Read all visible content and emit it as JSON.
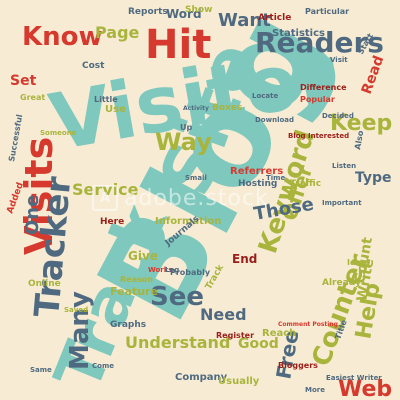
{
  "palette": {
    "background": "#f7ecd3",
    "teal": "#7fc8bd",
    "red": "#d6392e",
    "olive": "#a9b43c",
    "darkred": "#9a1f1a",
    "slate": "#4f6a80",
    "gray": "#8a8a7c"
  },
  "watermark": {
    "logo": "A",
    "text": "adobe.stock"
  },
  "cloud": {
    "main_words": [
      {
        "text": "Visitor",
        "color": "teal"
      },
      {
        "text": "Blog",
        "color": "teal"
      },
      {
        "text": "Site",
        "color": "teal"
      },
      {
        "text": "Track",
        "color": "teal"
      },
      {
        "text": "Visits",
        "color": "red"
      },
      {
        "text": "Hit",
        "color": "red"
      },
      {
        "text": "Know",
        "color": "red"
      },
      {
        "text": "Readers",
        "color": "slate"
      },
      {
        "text": "Keyword",
        "color": "olive"
      },
      {
        "text": "Tracker",
        "color": "slate"
      },
      {
        "text": "Counter",
        "color": "olive"
      },
      {
        "text": "Offer",
        "color": "olive"
      },
      {
        "text": "Keep",
        "color": "olive"
      },
      {
        "text": "Way",
        "color": "olive"
      },
      {
        "text": "See",
        "color": "slate"
      },
      {
        "text": "Free",
        "color": "slate"
      },
      {
        "text": "Many",
        "color": "slate"
      },
      {
        "text": "Web",
        "color": "red"
      },
      {
        "text": "Help",
        "color": "olive"
      },
      {
        "text": "Want",
        "color": "slate"
      },
      {
        "text": "Page",
        "color": "olive"
      },
      {
        "text": "Service",
        "color": "olive"
      },
      {
        "text": "Those",
        "color": "slate"
      },
      {
        "text": "One",
        "color": "slate"
      },
      {
        "text": "Need",
        "color": "slate"
      },
      {
        "text": "Understand",
        "color": "olive"
      },
      {
        "text": "Set",
        "color": "red"
      },
      {
        "text": "Good",
        "color": "olive"
      },
      {
        "text": "Write",
        "color": "olive"
      },
      {
        "text": "Type",
        "color": "slate"
      },
      {
        "text": "Read",
        "color": "red"
      },
      {
        "text": "Count",
        "color": "olive"
      },
      {
        "text": "Statistics",
        "color": "slate"
      },
      {
        "text": "Information",
        "color": "olive"
      },
      {
        "text": "Traffic",
        "color": "olive"
      },
      {
        "text": "Hosting",
        "color": "slate"
      },
      {
        "text": "End",
        "color": "darkred"
      },
      {
        "text": "Give",
        "color": "olive"
      },
      {
        "text": "Word",
        "color": "slate"
      },
      {
        "text": "Article",
        "color": "darkred"
      },
      {
        "text": "Feature",
        "color": "olive"
      },
      {
        "text": "Company",
        "color": "slate"
      },
      {
        "text": "Usually",
        "color": "olive"
      },
      {
        "text": "Reports",
        "color": "slate"
      },
      {
        "text": "Show",
        "color": "olive"
      },
      {
        "text": "Graphs",
        "color": "slate"
      },
      {
        "text": "Journals",
        "color": "slate"
      },
      {
        "text": "Referrers",
        "color": "red"
      },
      {
        "text": "Boxes",
        "color": "olive"
      },
      {
        "text": "Difference",
        "color": "darkred"
      },
      {
        "text": "Popular",
        "color": "red"
      },
      {
        "text": "Bloggers",
        "color": "darkred"
      },
      {
        "text": "Online",
        "color": "olive"
      },
      {
        "text": "Reach",
        "color": "olive"
      },
      {
        "text": "Comment Posting",
        "color": "red"
      },
      {
        "text": "Already",
        "color": "olive"
      },
      {
        "text": "Blog Interested",
        "color": "darkred"
      },
      {
        "text": "Download",
        "color": "slate"
      },
      {
        "text": "Activity",
        "color": "slate"
      },
      {
        "text": "Easiest Writer",
        "color": "slate"
      },
      {
        "text": "Register",
        "color": "darkred"
      },
      {
        "text": "Ideal",
        "color": "olive"
      },
      {
        "text": "Successful",
        "color": "slate"
      },
      {
        "text": "Someone",
        "color": "olive"
      },
      {
        "text": "Added",
        "color": "red"
      },
      {
        "text": "Listen",
        "color": "slate"
      },
      {
        "text": "Great",
        "color": "olive"
      },
      {
        "text": "Cost",
        "color": "slate"
      },
      {
        "text": "Little",
        "color": "slate"
      },
      {
        "text": "Same",
        "color": "slate"
      },
      {
        "text": "Come",
        "color": "slate"
      },
      {
        "text": "More",
        "color": "slate"
      },
      {
        "text": "Probably",
        "color": "slate"
      },
      {
        "text": "Saved",
        "color": "olive"
      },
      {
        "text": "Locate",
        "color": "slate"
      },
      {
        "text": "Small",
        "color": "slate"
      },
      {
        "text": "Time",
        "color": "slate"
      },
      {
        "text": "Use",
        "color": "olive"
      },
      {
        "text": "Here",
        "color": "darkred"
      },
      {
        "text": "Works",
        "color": "red"
      },
      {
        "text": "Reason",
        "color": "olive"
      },
      {
        "text": "Title",
        "color": "slate"
      },
      {
        "text": "Log",
        "color": "slate"
      },
      {
        "text": "Particular",
        "color": "slate"
      },
      {
        "text": "Start",
        "color": "slate"
      },
      {
        "text": "Decided",
        "color": "slate"
      },
      {
        "text": "Important",
        "color": "slate"
      },
      {
        "text": "Track",
        "color": "olive"
      },
      {
        "text": "Visit",
        "color": "slate"
      },
      {
        "text": "Also",
        "color": "slate"
      },
      {
        "text": "Up",
        "color": "slate"
      }
    ]
  }
}
